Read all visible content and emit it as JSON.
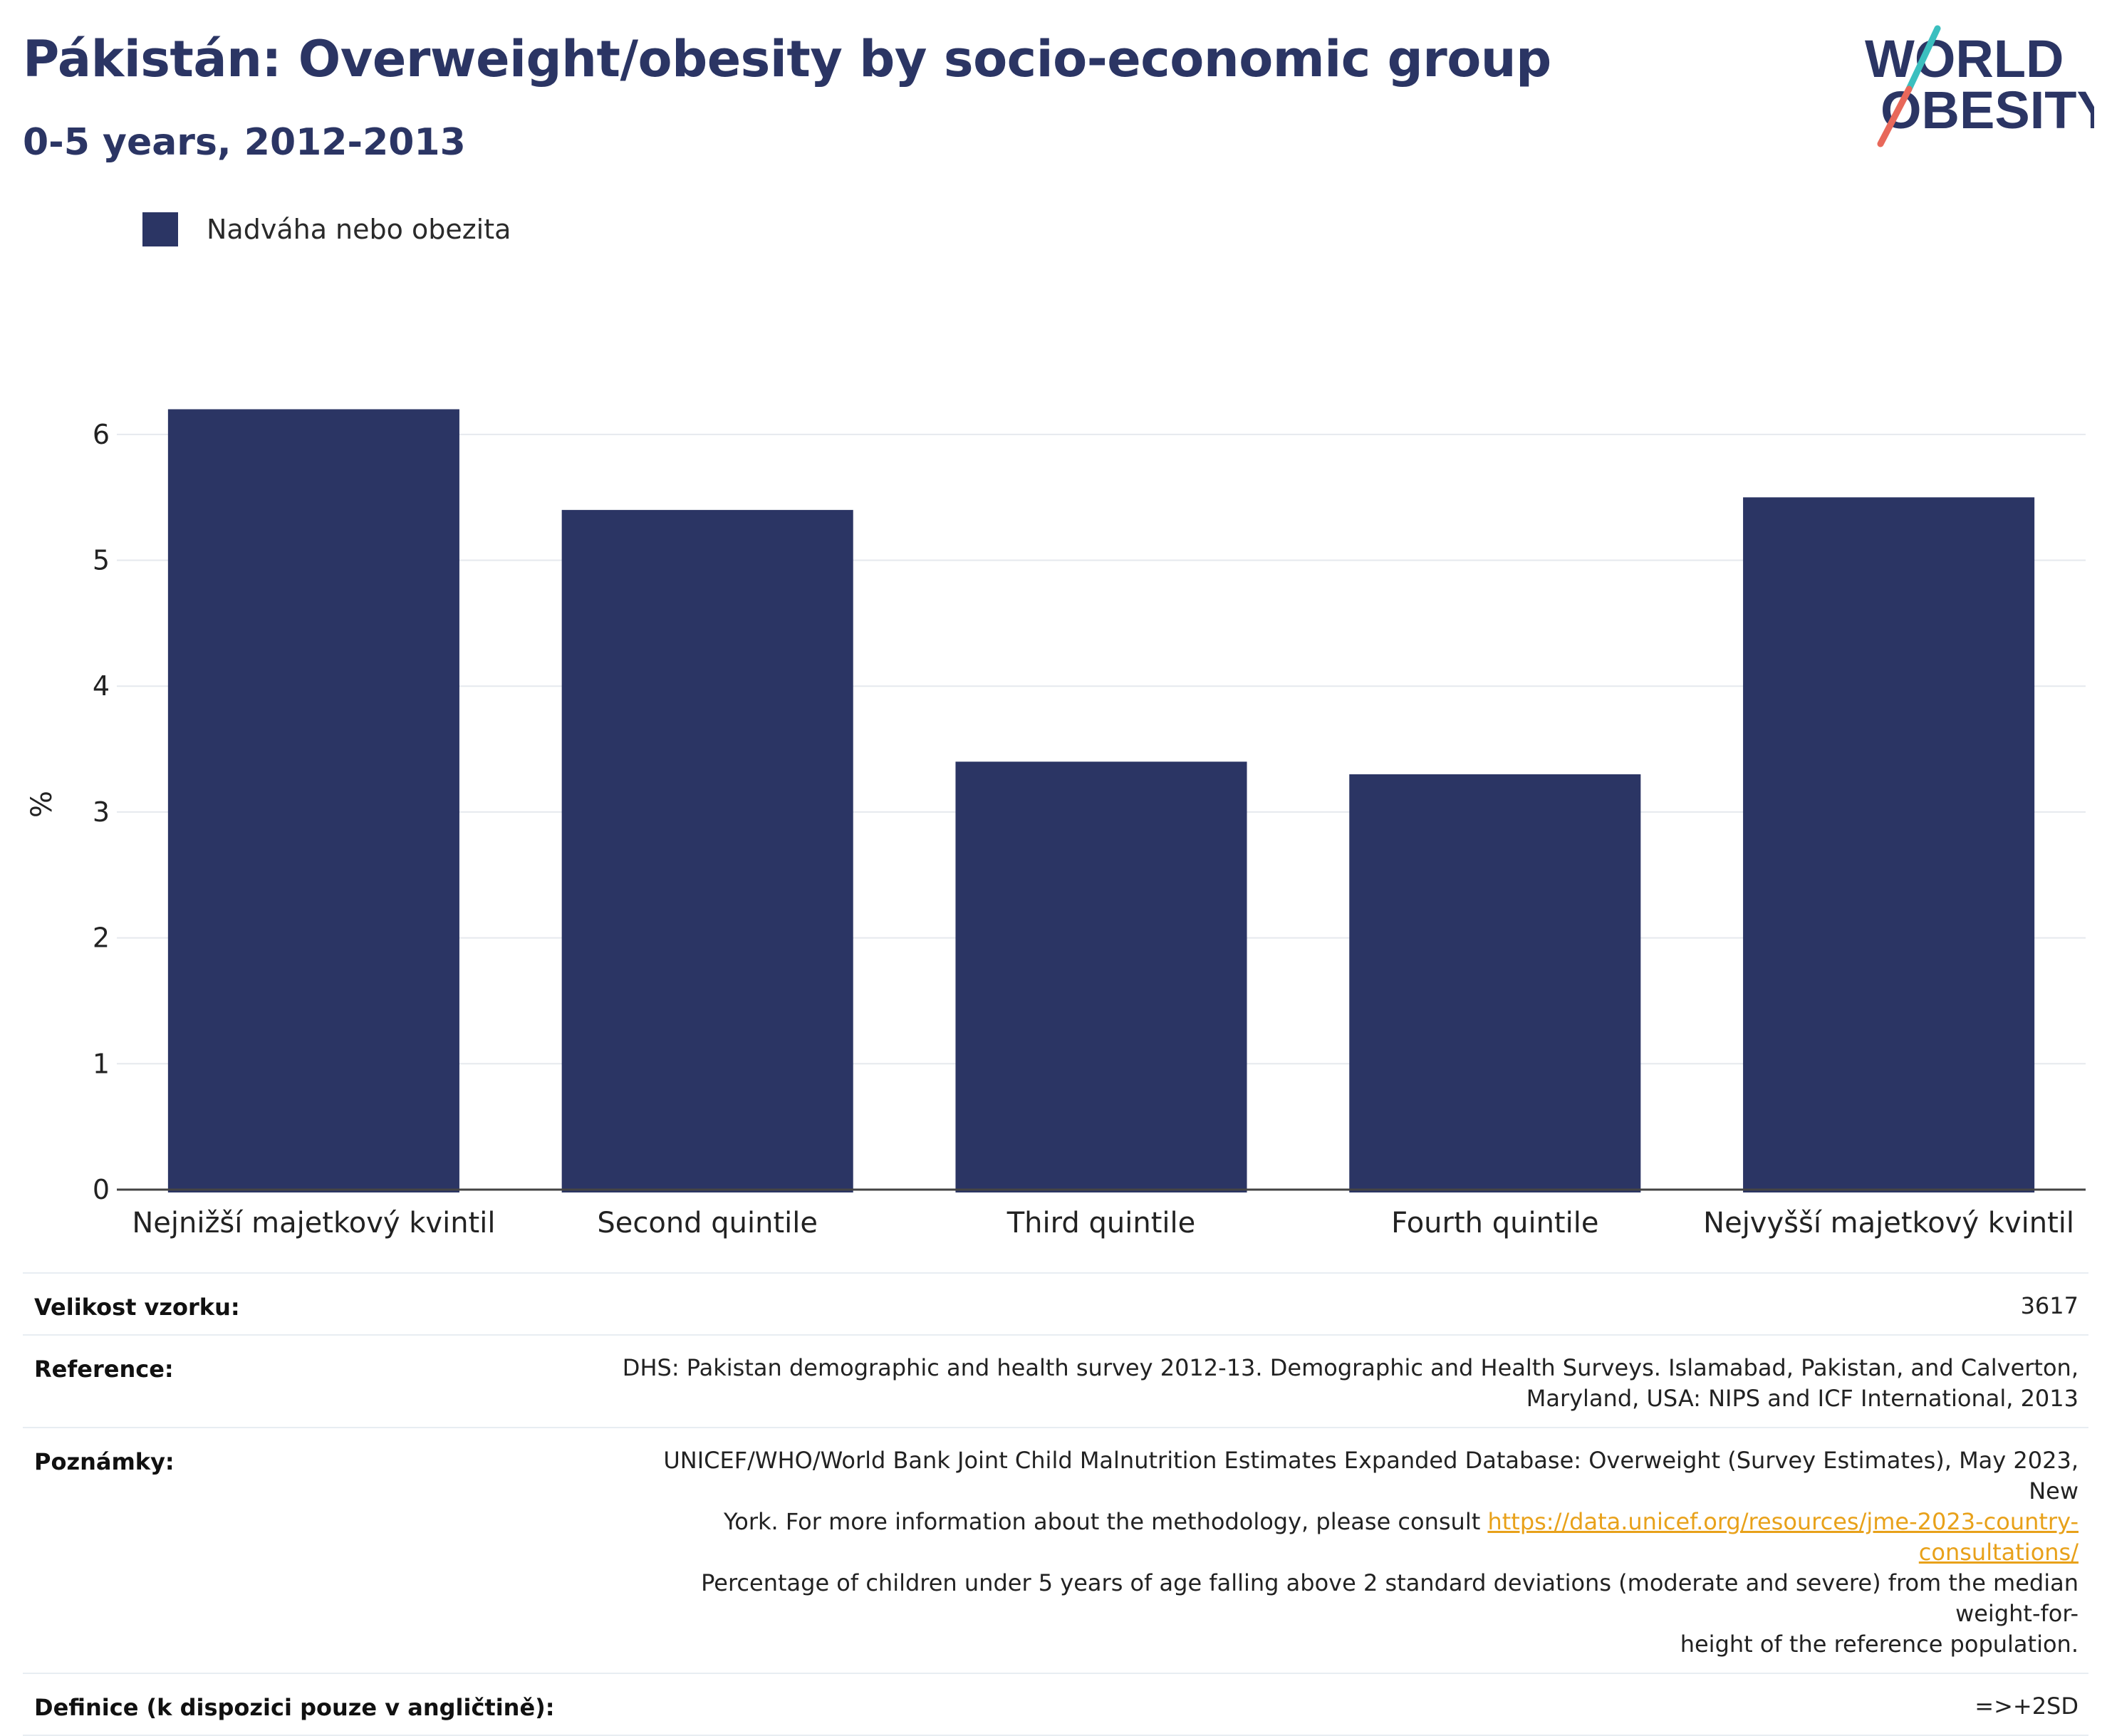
{
  "header": {
    "title": "Pákistán: Overweight/obesity by socio-economic group",
    "subtitle": "0-5 years, 2012-2013"
  },
  "logo": {
    "line1": "WORLD",
    "line2": "OBESITY",
    "colors": {
      "text": "#2b3564",
      "slash_top": "#3bbfbf",
      "slash_bottom": "#e8685a"
    }
  },
  "legend": {
    "label": "Nadváha nebo obezita",
    "color": "#2b3564"
  },
  "chart_data": {
    "type": "bar",
    "categories": [
      "Nejnižší majetkový kvintil",
      "Second quintile",
      "Third quintile",
      "Fourth quintile",
      "Nejvyšší majetkový kvintil"
    ],
    "series": [
      {
        "name": "Nadváha nebo obezita",
        "values": [
          6.2,
          5.4,
          3.4,
          3.3,
          5.5
        ],
        "color": "#2b3564"
      }
    ],
    "xlabel": "",
    "ylabel": "%",
    "ylim": [
      0,
      6.35
    ],
    "yticks": [
      0,
      1,
      2,
      3,
      4,
      5,
      6
    ],
    "grid": true,
    "legend_position": "top-left"
  },
  "info_table": {
    "sample_size": {
      "label": "Velikost vzorku:",
      "value": "3617"
    },
    "reference": {
      "label": "Reference:",
      "line1": "DHS: Pakistan demographic and health survey 2012-13. Demographic and Health Surveys. Islamabad, Pakistan, and Calverton,",
      "line2": "Maryland, USA: NIPS and ICF International, 2013"
    },
    "notes": {
      "label": "Poznámky:",
      "line1": "UNICEF/WHO/World Bank Joint Child Malnutrition Estimates Expanded Database: Overweight (Survey Estimates), May 2023, New",
      "line2_text": "York. For more information about the methodology, please consult ",
      "link": "https://data.unicef.org/resources/jme-2023-country-consultations/",
      "line3": "Percentage of children under 5 years of age falling above 2 standard deviations (moderate and severe) from the median weight-for-",
      "line4": "height of the reference population."
    },
    "definition": {
      "label": "Definice (k dispozici pouze v angličtině):",
      "value": "=>+2SD"
    }
  }
}
